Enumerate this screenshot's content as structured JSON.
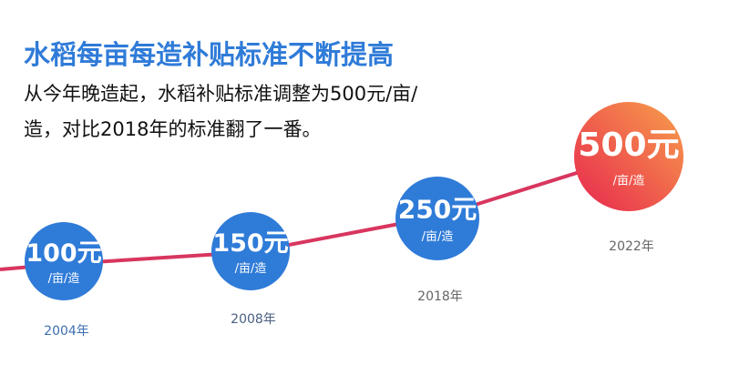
{
  "header": {
    "title": "水稻每亩每造补贴标准不断提高",
    "subtitle_lines": [
      "从今年晚造起，水稻补贴标准调整为500元/亩/",
      "造，对比2018年的标准翻了一番。"
    ]
  },
  "items": [
    {
      "value": "100元",
      "unit": "/亩/造",
      "year": "2004年"
    },
    {
      "value": "150元",
      "unit": "/亩/造",
      "year": "2008年"
    },
    {
      "value": "250元",
      "unit": "/亩/造",
      "year": "2018年"
    },
    {
      "value": "500元",
      "unit": "/亩/造",
      "year": "2022年"
    }
  ]
}
